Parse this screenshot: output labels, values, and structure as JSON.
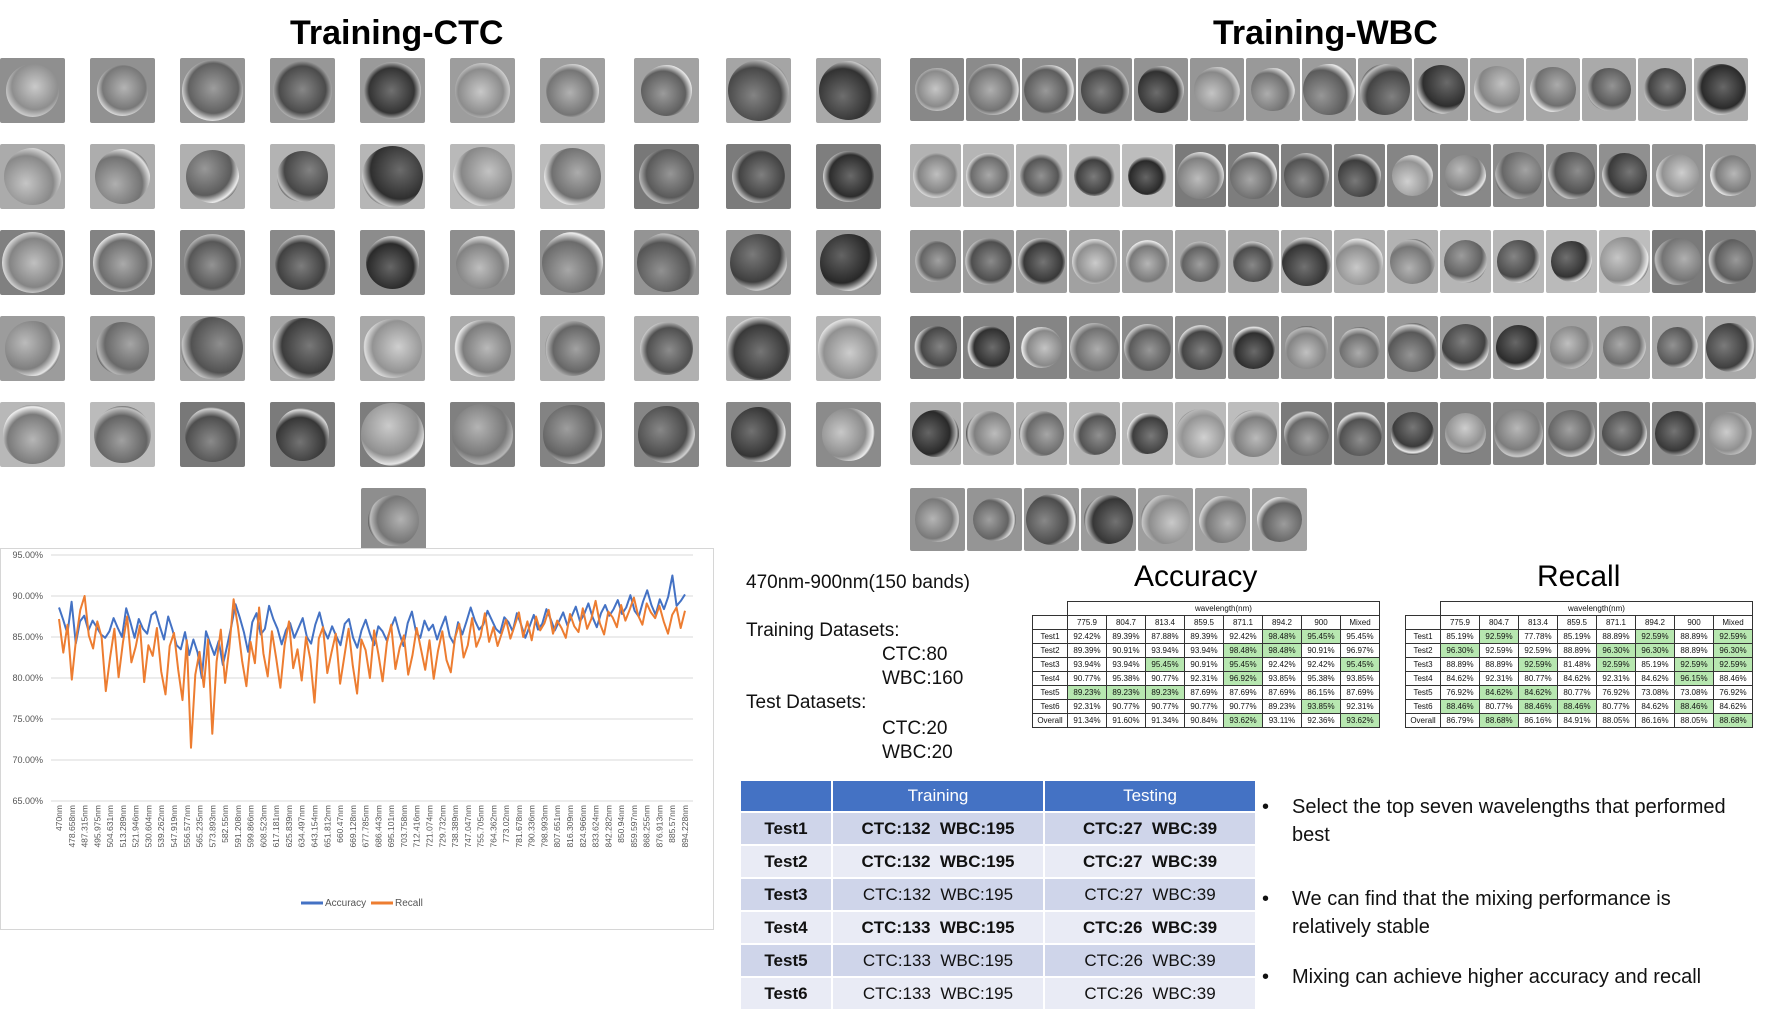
{
  "titles": {
    "ctc": "Training-CTC",
    "wbc": "Training-WBC",
    "accuracy": "Accuracy",
    "recall": "Recall"
  },
  "info": {
    "band_range": "470nm-900nm(150 bands)",
    "training_label": "Training Datasets:",
    "training_ctc": "CTC:80",
    "training_wbc": "WBC:160",
    "test_label": "Test Datasets:",
    "test_ctc": "CTC:20",
    "test_wbc": "WBC:20"
  },
  "chart_data": {
    "type": "line",
    "title": "",
    "xlabel": "",
    "ylabel": "",
    "ylim": [
      65,
      95
    ],
    "y_ticks": [
      "95.00%",
      "90.00%",
      "85.00%",
      "80.00%",
      "75.00%",
      "70.00%",
      "65.00%"
    ],
    "x_ticks": [
      "470nm",
      "478.658nm",
      "487.315nm",
      "495.975nm",
      "504.631nm",
      "513.289nm",
      "521.946nm",
      "530.604nm",
      "539.262nm",
      "547.919nm",
      "556.577nm",
      "565.235nm",
      "573.893nm",
      "582.55nm",
      "591.208nm",
      "599.866nm",
      "608.523nm",
      "617.181nm",
      "625.839nm",
      "634.497nm",
      "643.154nm",
      "651.812nm",
      "660.47nm",
      "669.128nm",
      "677.785nm",
      "686.443nm",
      "695.101nm",
      "703.758nm",
      "712.416nm",
      "721.074nm",
      "729.732nm",
      "738.389nm",
      "747.047nm",
      "755.705nm",
      "764.362nm",
      "773.02nm",
      "781.678nm",
      "790.336nm",
      "798.993nm",
      "807.651nm",
      "816.309nm",
      "824.966nm",
      "833.624nm",
      "842.282nm",
      "850.94nm",
      "859.597nm",
      "868.255nm",
      "876.913nm",
      "885.57nm",
      "894.228nm"
    ],
    "legend_position": "bottom",
    "series": [
      {
        "name": "Accuracy",
        "color": "#4472c4",
        "values": [
          88.6,
          87.1,
          85.4,
          89.3,
          84.2,
          86.9,
          87.6,
          85.8,
          87.0,
          86.2,
          85.3,
          84.9,
          85.7,
          87.3,
          86.1,
          85.0,
          88.5,
          86.8,
          84.9,
          87.2,
          86.0,
          85.4,
          87.7,
          88.1,
          86.3,
          84.7,
          87.5,
          85.9,
          84.0,
          83.5,
          85.6,
          82.8,
          84.7,
          83.1,
          80.0,
          85.7,
          84.2,
          82.8,
          84.5,
          81.6,
          83.9,
          86.3,
          89.0,
          87.4,
          85.6,
          83.2,
          86.8,
          87.9,
          85.3,
          86.0,
          88.8,
          87.2,
          86.0,
          84.1,
          85.8,
          86.7,
          84.9,
          86.1,
          87.3,
          85.0,
          84.2,
          86.5,
          88.0,
          85.9,
          84.8,
          86.3,
          85.1,
          84.0,
          86.6,
          87.2,
          84.9,
          83.7,
          85.8,
          87.1,
          85.4,
          84.0,
          86.3,
          85.7,
          84.6,
          86.1,
          87.4,
          85.5,
          83.9,
          86.7,
          88.1,
          85.6,
          84.9,
          87.0,
          85.8,
          86.5,
          84.7,
          86.2,
          87.5,
          85.1,
          84.2,
          86.8,
          85.3,
          86.9,
          88.6,
          87.0,
          85.9,
          86.5,
          88.2,
          87.1,
          86.0,
          85.5,
          87.4,
          86.8,
          85.7,
          87.9,
          86.5,
          84.9,
          86.3,
          87.7,
          85.9,
          86.6,
          88.4,
          87.2,
          85.8,
          86.9,
          88.0,
          86.4,
          87.5,
          88.7,
          86.9,
          87.8,
          89.1,
          87.4,
          86.2,
          87.9,
          88.9,
          87.6,
          88.4,
          89.5,
          87.8,
          88.6,
          90.1,
          88.2,
          87.5,
          89.3,
          90.7,
          88.9,
          87.7,
          89.6,
          88.4,
          89.9,
          92.5,
          88.8,
          89.4,
          90.2
        ]
      },
      {
        "name": "Recall",
        "color": "#ed7d31",
        "values": [
          87.2,
          83.1,
          86.5,
          79.8,
          84.7,
          88.3,
          90.0,
          85.2,
          83.6,
          86.9,
          85.0,
          78.4,
          82.5,
          86.0,
          80.1,
          84.3,
          87.5,
          81.9,
          83.8,
          86.4,
          79.5,
          84.0,
          82.7,
          86.1,
          80.8,
          78.0,
          83.9,
          85.5,
          81.0,
          77.3,
          84.6,
          71.5,
          80.4,
          83.2,
          78.9,
          84.7,
          73.2,
          82.0,
          85.9,
          79.4,
          83.7,
          89.6,
          86.3,
          82.1,
          79.0,
          84.4,
          81.8,
          88.6,
          83.0,
          80.2,
          85.7,
          82.4,
          78.8,
          84.1,
          86.9,
          81.2,
          83.5,
          79.7,
          85.0,
          82.3,
          77.0,
          84.8,
          86.2,
          80.6,
          83.1,
          85.4,
          79.3,
          82.6,
          86.0,
          81.5,
          78.1,
          84.7,
          83.4,
          80.0,
          85.8,
          82.9,
          79.6,
          84.3,
          86.5,
          81.1,
          83.7,
          85.2,
          80.4,
          82.8,
          86.1,
          83.5,
          81.0,
          84.6,
          79.9,
          83.3,
          85.7,
          82.2,
          80.7,
          84.9,
          86.6,
          82.5,
          84.0,
          87.3,
          83.8,
          85.1,
          87.9,
          84.4,
          86.2,
          83.9,
          85.5,
          87.1,
          84.8,
          86.4,
          88.0,
          85.0,
          86.9,
          84.6,
          87.5,
          85.8,
          86.7,
          88.3,
          85.4,
          87.0,
          86.1,
          84.9,
          87.8,
          86.3,
          85.6,
          88.5,
          86.0,
          87.2,
          89.4,
          86.7,
          85.3,
          88.1,
          87.4,
          86.2,
          88.9,
          87.0,
          88.3,
          89.8,
          87.6,
          86.5,
          89.1,
          88.0,
          87.3,
          88.8,
          86.9,
          85.4,
          87.7,
          88.6,
          86.1,
          88.2
        ]
      }
    ]
  },
  "mini_tables": {
    "header_group": "wavelength(nm)",
    "columns": [
      "775.9",
      "804.7",
      "813.4",
      "859.5",
      "871.1",
      "894.2",
      "900",
      "Mixed"
    ],
    "rows": [
      "Test1",
      "Test2",
      "Test3",
      "Test4",
      "Test5",
      "Test6",
      "Overall"
    ],
    "accuracy": [
      [
        "92.42%",
        "89.39%",
        "87.88%",
        "89.39%",
        "92.42%",
        "98.48%",
        "95.45%",
        "95.45%"
      ],
      [
        "89.39%",
        "90.91%",
        "93.94%",
        "93.94%",
        "98.48%",
        "98.48%",
        "90.91%",
        "96.97%"
      ],
      [
        "93.94%",
        "93.94%",
        "95.45%",
        "90.91%",
        "95.45%",
        "92.42%",
        "92.42%",
        "95.45%"
      ],
      [
        "90.77%",
        "95.38%",
        "90.77%",
        "92.31%",
        "96.92%",
        "93.85%",
        "95.38%",
        "93.85%"
      ],
      [
        "89.23%",
        "89.23%",
        "89.23%",
        "87.69%",
        "87.69%",
        "87.69%",
        "86.15%",
        "87.69%"
      ],
      [
        "92.31%",
        "90.77%",
        "90.77%",
        "90.77%",
        "90.77%",
        "89.23%",
        "93.85%",
        "92.31%"
      ],
      [
        "91.34%",
        "91.60%",
        "91.34%",
        "90.84%",
        "93.62%",
        "93.11%",
        "92.36%",
        "93.62%"
      ]
    ],
    "accuracy_green": [
      [
        0,
        5
      ],
      [
        0,
        6
      ],
      [
        1,
        4
      ],
      [
        1,
        5
      ],
      [
        2,
        2
      ],
      [
        2,
        4
      ],
      [
        2,
        7
      ],
      [
        3,
        4
      ],
      [
        4,
        0
      ],
      [
        4,
        1
      ],
      [
        4,
        2
      ],
      [
        5,
        6
      ],
      [
        6,
        4
      ],
      [
        6,
        7
      ]
    ],
    "recall": [
      [
        "85.19%",
        "92.59%",
        "77.78%",
        "85.19%",
        "88.89%",
        "92.59%",
        "88.89%",
        "92.59%"
      ],
      [
        "96.30%",
        "92.59%",
        "92.59%",
        "88.89%",
        "96.30%",
        "96.30%",
        "88.89%",
        "96.30%"
      ],
      [
        "88.89%",
        "88.89%",
        "92.59%",
        "81.48%",
        "92.59%",
        "85.19%",
        "92.59%",
        "92.59%"
      ],
      [
        "84.62%",
        "92.31%",
        "80.77%",
        "84.62%",
        "92.31%",
        "84.62%",
        "96.15%",
        "88.46%"
      ],
      [
        "76.92%",
        "84.62%",
        "84.62%",
        "80.77%",
        "76.92%",
        "73.08%",
        "73.08%",
        "76.92%"
      ],
      [
        "88.46%",
        "80.77%",
        "88.46%",
        "88.46%",
        "80.77%",
        "84.62%",
        "88.46%",
        "84.62%"
      ],
      [
        "86.79%",
        "88.68%",
        "86.16%",
        "84.91%",
        "88.05%",
        "86.16%",
        "88.05%",
        "88.68%"
      ]
    ],
    "recall_green": [
      [
        0,
        1
      ],
      [
        0,
        5
      ],
      [
        0,
        7
      ],
      [
        1,
        0
      ],
      [
        1,
        4
      ],
      [
        1,
        5
      ],
      [
        1,
        7
      ],
      [
        2,
        2
      ],
      [
        2,
        4
      ],
      [
        2,
        6
      ],
      [
        2,
        7
      ],
      [
        3,
        6
      ],
      [
        4,
        1
      ],
      [
        4,
        2
      ],
      [
        5,
        0
      ],
      [
        5,
        2
      ],
      [
        5,
        3
      ],
      [
        5,
        6
      ],
      [
        6,
        1
      ],
      [
        6,
        7
      ]
    ]
  },
  "split_table": {
    "headers": [
      "",
      "Training",
      "Testing"
    ],
    "rows": [
      {
        "name": "Test1",
        "train": "CTC:132  WBC:195",
        "test": "CTC:27  WBC:39",
        "bold": true
      },
      {
        "name": "Test2",
        "train": "CTC:132  WBC:195",
        "test": "CTC:27  WBC:39",
        "bold": true
      },
      {
        "name": "Test3",
        "train": "CTC:132  WBC:195",
        "test": "CTC:27  WBC:39",
        "bold": false
      },
      {
        "name": "Test4",
        "train": "CTC:133  WBC:195",
        "test": "CTC:26  WBC:39",
        "bold": true
      },
      {
        "name": "Test5",
        "train": "CTC:133  WBC:195",
        "test": "CTC:26  WBC:39",
        "bold": false
      },
      {
        "name": "Test6",
        "train": "CTC:133  WBC:195",
        "test": "CTC:26  WBC:39",
        "bold": false
      }
    ]
  },
  "bullets": [
    "Select the top seven wavelengths that performed best",
    "We can find that the mixing performance is relatively stable",
    "Mixing can achieve higher accuracy and recall"
  ],
  "colors": {
    "header_blue": "#4472c4",
    "row_odd": "#cfd5ea",
    "row_even": "#e9ebf5",
    "cell_green": "#b7e7b0"
  }
}
